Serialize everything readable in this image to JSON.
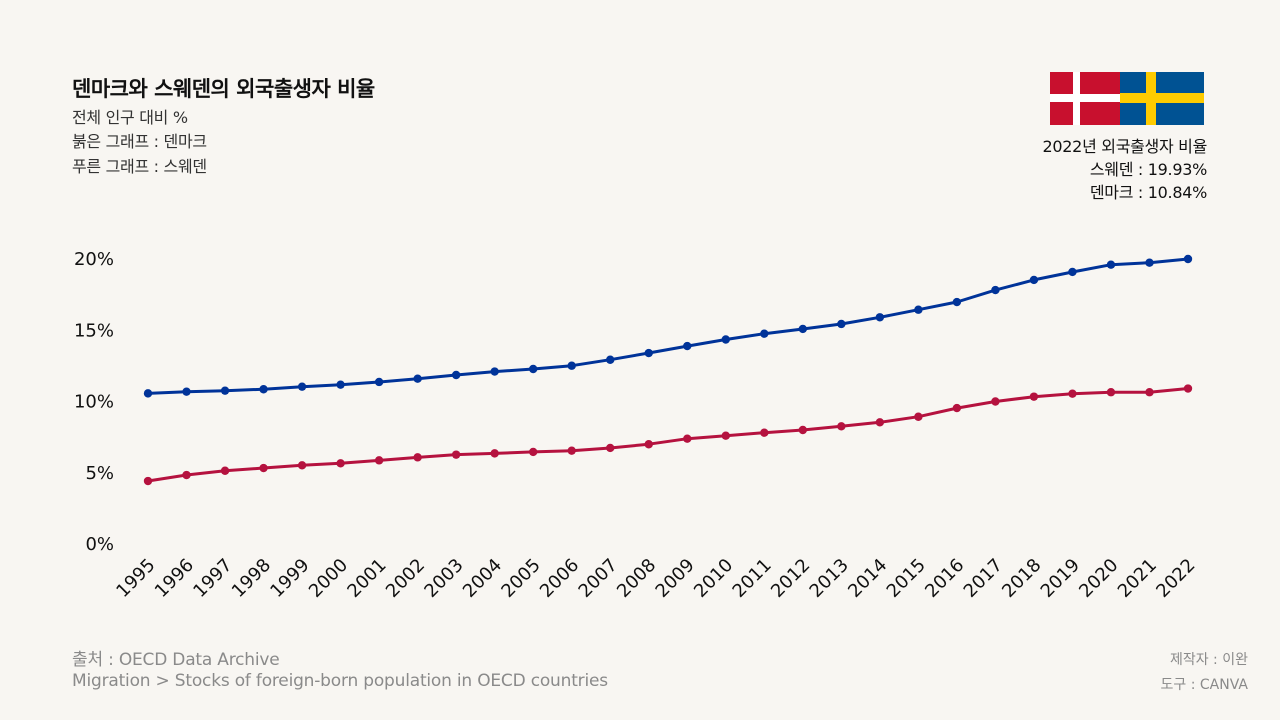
{
  "header": {
    "title": "덴마크와 스웨덴의 외국출생자 비율",
    "subtitle_lines": [
      "전체 인구 대비 %",
      "붉은 그래프 : 덴마크",
      "푸른 그래프 : 스웨덴"
    ]
  },
  "info_box": {
    "lines": [
      "2022년 외국출생자 비율",
      "스웨덴 : 19.93%",
      "덴마크 : 10.84%"
    ],
    "flags": [
      {
        "country": "Denmark",
        "icon": "denmark-flag-icon",
        "colors": {
          "field": "#c8102e",
          "cross": "#ffffff"
        }
      },
      {
        "country": "Sweden",
        "icon": "sweden-flag-icon",
        "colors": {
          "field": "#005293",
          "cross": "#fecb00"
        }
      }
    ]
  },
  "footer": {
    "source_lines": [
      "출처 : OECD Data Archive",
      "Migration > Stocks of foreign-born population in OECD countries"
    ],
    "credit_lines": [
      "제작자 : 이완",
      "도구 : CANVA"
    ]
  },
  "chart_data": {
    "type": "line",
    "title": "덴마크와 스웨덴의 외국출생자 비율",
    "subtitle": "전체 인구 대비 %",
    "xlabel": "",
    "ylabel": "",
    "ylim": [
      0,
      20
    ],
    "yticks": [
      0,
      5,
      10,
      15,
      20
    ],
    "ytick_labels": [
      "0%",
      "5%",
      "10%",
      "15%",
      "20%"
    ],
    "grid": false,
    "legend": "none (described in subtitle text)",
    "x": [
      "1995",
      "1996",
      "1997",
      "1998",
      "1999",
      "2000",
      "2001",
      "2002",
      "2003",
      "2004",
      "2005",
      "2006",
      "2007",
      "2008",
      "2009",
      "2010",
      "2011",
      "2012",
      "2013",
      "2014",
      "2015",
      "2016",
      "2017",
      "2018",
      "2019",
      "2020",
      "2021",
      "2022"
    ],
    "series": [
      {
        "name": "스웨덴",
        "color": "#003399",
        "values": [
          10.5,
          10.62,
          10.69,
          10.79,
          10.97,
          11.11,
          11.3,
          11.53,
          11.79,
          12.03,
          12.21,
          12.44,
          12.86,
          13.33,
          13.82,
          14.28,
          14.69,
          15.02,
          15.37,
          15.84,
          16.37,
          16.91,
          17.75,
          18.46,
          19.02,
          19.53,
          19.67,
          19.93
        ]
      },
      {
        "name": "덴마크",
        "color": "#b5123f",
        "values": [
          4.35,
          4.77,
          5.07,
          5.26,
          5.45,
          5.59,
          5.8,
          6.01,
          6.2,
          6.29,
          6.39,
          6.48,
          6.67,
          6.93,
          7.32,
          7.53,
          7.74,
          7.93,
          8.19,
          8.47,
          8.86,
          9.47,
          9.93,
          10.27,
          10.48,
          10.58,
          10.58,
          10.84
        ]
      }
    ]
  }
}
